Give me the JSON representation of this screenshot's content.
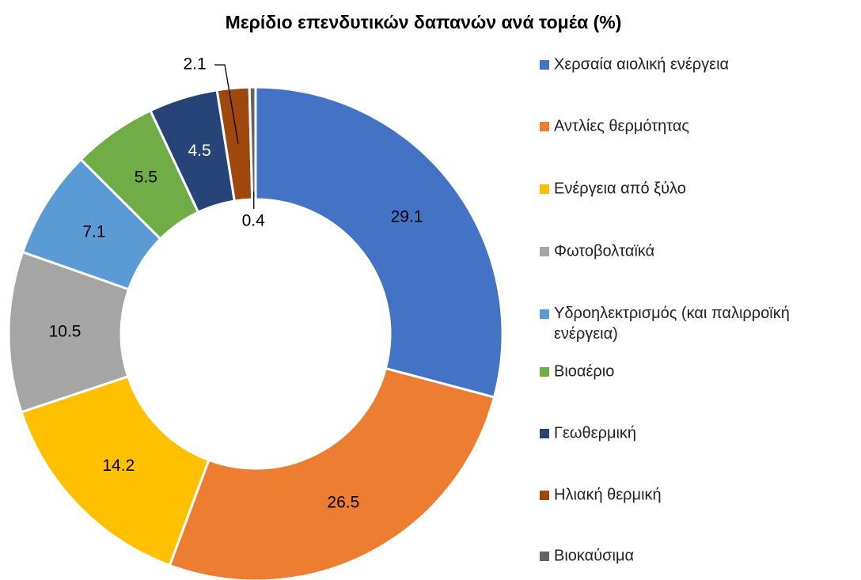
{
  "chart_data": {
    "type": "donut",
    "title": "Μερίδιο επενδυτικών δαπανών ανά τομέα (%)",
    "categories": [
      "Χερσαία αιολική ενέργεια",
      "Αντλίες θερμότητας",
      "Ενέργεια από ξύλο",
      "Φωτοβολταϊκά",
      "Υδροηλεκτρισμός (και παλιρροϊκή ενέργεια)",
      "Βιοαέριο",
      "Γεωθερμική",
      "Ηλιακή θερμική",
      "Βιοκαύσιμα"
    ],
    "values": [
      29.1,
      26.5,
      14.2,
      10.5,
      7.1,
      5.5,
      4.5,
      2.1,
      0.4
    ],
    "colors": [
      "#4472c4",
      "#ed7d31",
      "#ffc000",
      "#a5a5a5",
      "#5b9bd5",
      "#70ad47",
      "#264478",
      "#9e480e",
      "#636363"
    ],
    "legend": "right"
  }
}
